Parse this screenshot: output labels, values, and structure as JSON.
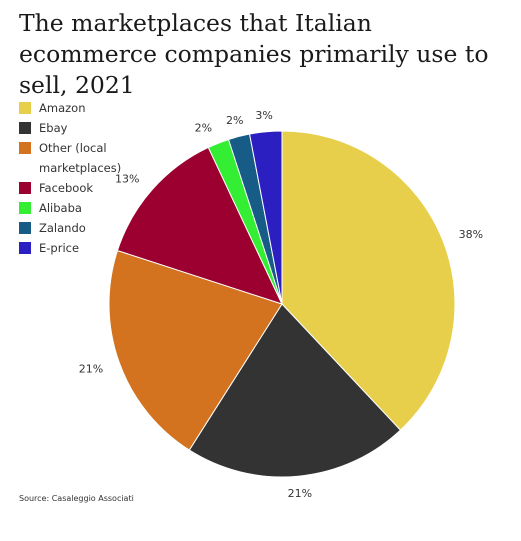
{
  "title": "The marketplaces that Italian ecommerce companies primarily use to sell, 2021",
  "source": "Source: Casaleggio Associati",
  "chart_data": {
    "type": "pie",
    "title": "The marketplaces that Italian ecommerce companies primarily use to sell, 2021",
    "legend_position": "top-left",
    "slices": [
      {
        "label": "Amazon",
        "value": 38,
        "value_label": "38%",
        "color": "#e8cf4b"
      },
      {
        "label": "Ebay",
        "value": 21,
        "value_label": "21%",
        "color": "#333333"
      },
      {
        "label": "Other (local marketplaces)",
        "value": 21,
        "value_label": "21%",
        "color": "#d4731f"
      },
      {
        "label": "Facebook",
        "value": 13,
        "value_label": "13%",
        "color": "#9b0031"
      },
      {
        "label": "Alibaba",
        "value": 2,
        "value_label": "2%",
        "color": "#33ee33"
      },
      {
        "label": "Zalando",
        "value": 2,
        "value_label": "2%",
        "color": "#175c86"
      },
      {
        "label": "E-price",
        "value": 3,
        "value_label": "3%",
        "color": "#2b1fc2"
      }
    ]
  }
}
